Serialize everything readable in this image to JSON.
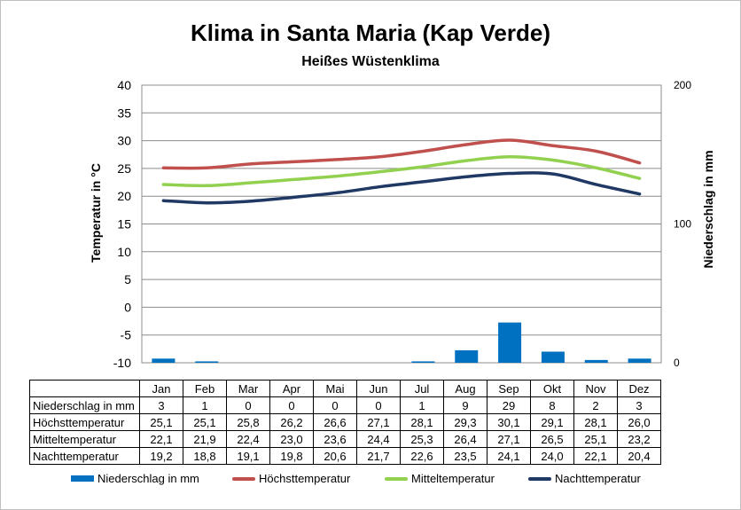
{
  "chart_data": {
    "type": "bar+line",
    "title": "Klima in Santa Maria (Kap Verde)",
    "subtitle": "Heißes Wüstenklima",
    "ylabel": "Temperatur in °C",
    "y2label": "Niederschlag in mm",
    "ylim": [
      -10,
      40
    ],
    "yticks": [
      -10,
      -5,
      0,
      5,
      10,
      15,
      20,
      25,
      30,
      35,
      40
    ],
    "y2lim": [
      0,
      200
    ],
    "y2ticks": [
      0,
      100,
      200
    ],
    "grid": true,
    "legend_position": "bottom",
    "categories": [
      "Jan",
      "Feb",
      "Mar",
      "Apr",
      "Mai",
      "Jun",
      "Jul",
      "Aug",
      "Sep",
      "Okt",
      "Nov",
      "Dez"
    ],
    "series": [
      {
        "name": "Niederschlag in mm",
        "kind": "bar",
        "axis": "right",
        "color": "#0070c0",
        "values": [
          3,
          1,
          0,
          0,
          0,
          0,
          1,
          9,
          29,
          8,
          2,
          3
        ],
        "labels": [
          "3",
          "1",
          "0",
          "0",
          "0",
          "0",
          "1",
          "9",
          "29",
          "8",
          "2",
          "3"
        ]
      },
      {
        "name": "Höchsttemperatur",
        "kind": "line",
        "axis": "left",
        "color": "#c0504d",
        "values": [
          25.1,
          25.1,
          25.8,
          26.2,
          26.6,
          27.1,
          28.1,
          29.3,
          30.1,
          29.1,
          28.1,
          26.0
        ],
        "labels": [
          "25,1",
          "25,1",
          "25,8",
          "26,2",
          "26,6",
          "27,1",
          "28,1",
          "29,3",
          "30,1",
          "29,1",
          "28,1",
          "26,0"
        ]
      },
      {
        "name": "Mitteltemperatur",
        "kind": "line",
        "axis": "left",
        "color": "#92d050",
        "values": [
          22.1,
          21.9,
          22.4,
          23.0,
          23.6,
          24.4,
          25.3,
          26.4,
          27.1,
          26.5,
          25.1,
          23.2
        ],
        "labels": [
          "22,1",
          "21,9",
          "22,4",
          "23,0",
          "23,6",
          "24,4",
          "25,3",
          "26,4",
          "27,1",
          "26,5",
          "25,1",
          "23,2"
        ]
      },
      {
        "name": "Nachttemperatur",
        "kind": "line",
        "axis": "left",
        "color": "#1f3864",
        "values": [
          19.2,
          18.8,
          19.1,
          19.8,
          20.6,
          21.7,
          22.6,
          23.5,
          24.1,
          24.0,
          22.1,
          20.4
        ],
        "labels": [
          "19,2",
          "18,8",
          "19,1",
          "19,8",
          "20,6",
          "21,7",
          "22,6",
          "23,5",
          "24,1",
          "24,0",
          "22,1",
          "20,4"
        ]
      }
    ]
  }
}
